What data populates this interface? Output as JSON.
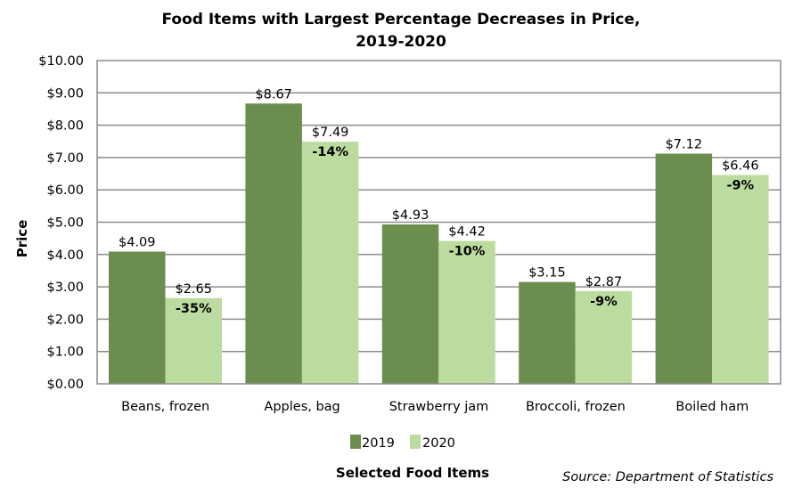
{
  "chart_data": {
    "type": "bar",
    "title_line1": "Food Items with Largest Percentage Decreases in Price,",
    "title_line2": "2019-2020",
    "xlabel": "Selected Food Items",
    "ylabel": "Price",
    "ylim": [
      0,
      10
    ],
    "ytick_step": 1,
    "ytick_labels": [
      "$0.00",
      "$1.00",
      "$2.00",
      "$3.00",
      "$4.00",
      "$5.00",
      "$6.00",
      "$7.00",
      "$8.00",
      "$9.00",
      "$10.00"
    ],
    "grid": true,
    "legend_position": "bottom-center",
    "categories": [
      "Beans, frozen",
      "Apples, bag",
      "Strawberry jam",
      "Broccoli, frozen",
      "Boiled ham"
    ],
    "series": [
      {
        "name": "2019",
        "color": "#6b8e4e",
        "values": [
          4.09,
          8.67,
          4.93,
          3.15,
          7.12
        ],
        "labels": [
          "$4.09",
          "$8.67",
          "$4.93",
          "$3.15",
          "$7.12"
        ]
      },
      {
        "name": "2020",
        "color": "#bcdc9f",
        "values": [
          2.65,
          7.49,
          4.42,
          2.87,
          6.46
        ],
        "labels": [
          "$2.65",
          "$7.49",
          "$4.42",
          "$2.87",
          "$6.46"
        ]
      }
    ],
    "pct_change_labels": [
      "-35%",
      "-14%",
      "-10%",
      "-9%",
      "-9%"
    ],
    "source": "Source: Department of Statistics"
  }
}
